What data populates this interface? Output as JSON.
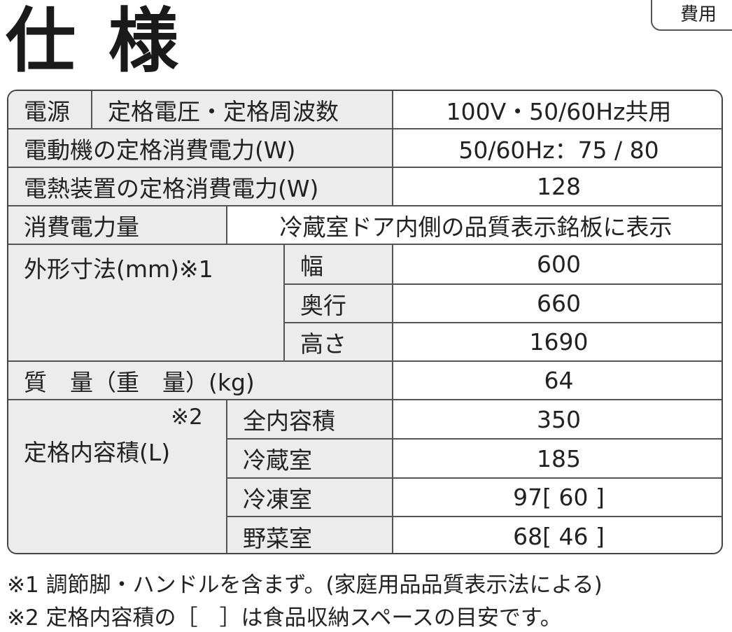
{
  "header": {
    "title": "仕 様",
    "tab": "費用"
  },
  "table": {
    "power_source": {
      "label": "電源",
      "sublabel": "定格電圧・定格周波数",
      "value": "100V・50/60Hz共用"
    },
    "rows": [
      {
        "label": "電動機の定格消費電力(W)",
        "value": "50/60Hz：75 / 80"
      },
      {
        "label": "電熱装置の定格消費電力(W)",
        "value": "128"
      },
      {
        "label": "消費電力量",
        "value": "冷蔵室ドア内側の品質表示銘板に表示"
      }
    ],
    "dimensions": {
      "label": "外形寸法(mm)※1",
      "items": [
        {
          "label": "幅",
          "value": "600"
        },
        {
          "label": "奥行",
          "value": "660"
        },
        {
          "label": "高さ",
          "value": "1690"
        }
      ]
    },
    "mass": {
      "label": "質　量（重　量）(kg)",
      "value": "64"
    },
    "capacity": {
      "note": "※2",
      "label": "定格内容積(L)",
      "items": [
        {
          "label": "全内容積",
          "value": "350"
        },
        {
          "label": "冷蔵室",
          "value": "185"
        },
        {
          "label": "冷凍室",
          "value": "97[ 60 ]"
        },
        {
          "label": "野菜室",
          "value": "68[ 46 ]"
        }
      ]
    }
  },
  "footnotes": [
    "※1 調節脚・ハンドルを含まず。(家庭用品品質表示法による)",
    "※2 定格内容積の［　］は食品収納スペースの目安です。"
  ]
}
